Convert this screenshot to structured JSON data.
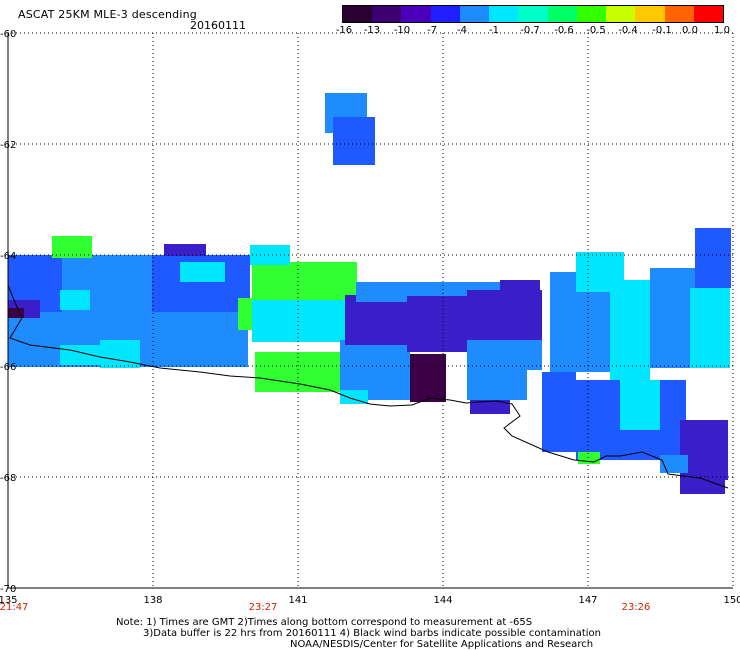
{
  "header": {
    "title": "ASCAT 25KM MLE-3 descending",
    "date": "20160111"
  },
  "colorbar": {
    "labels": [
      "-16",
      "-13",
      "-10",
      "-7",
      "-4",
      "-1",
      "-0.7",
      "-0.6",
      "-0.5",
      "-0.4",
      "-0.1",
      "0.0",
      "1.0"
    ],
    "colors": [
      "#2a0030",
      "#3c0070",
      "#4a00b8",
      "#1e1eff",
      "#1e8cff",
      "#00e6ff",
      "#00ffc8",
      "#00ff64",
      "#32ff00",
      "#c8ff00",
      "#ffc800",
      "#ff6400",
      "#ff0000"
    ]
  },
  "chart_data": {
    "type": "heatmap",
    "xlim": [
      135,
      150
    ],
    "ylim": [
      -70,
      -60
    ],
    "xticks": [
      "135",
      "138",
      "141",
      "144",
      "147",
      "150"
    ],
    "yticks": [
      "-60",
      "-62",
      "-64",
      "-66",
      "-68",
      "-70"
    ],
    "time_labels": [
      "21:47",
      "23:27",
      "23:26"
    ],
    "colors": {
      "blue": "#1e5aff",
      "mid": "#1e8cff",
      "cyan": "#00e6ff",
      "green": "#32ff32",
      "dark": "#3c0046",
      "indigo": "#3a1ec8"
    }
  },
  "notes": {
    "line1": "Note: 1) Times are GMT 2)Times along bottom correspond to measurement at -65S",
    "line2": "3)Data buffer is 22 hrs from 20160111 4) Black wind barbs indicate possible contamination",
    "line3": "NOAA/NESDIS/Center for Satellite Applications and Research"
  }
}
